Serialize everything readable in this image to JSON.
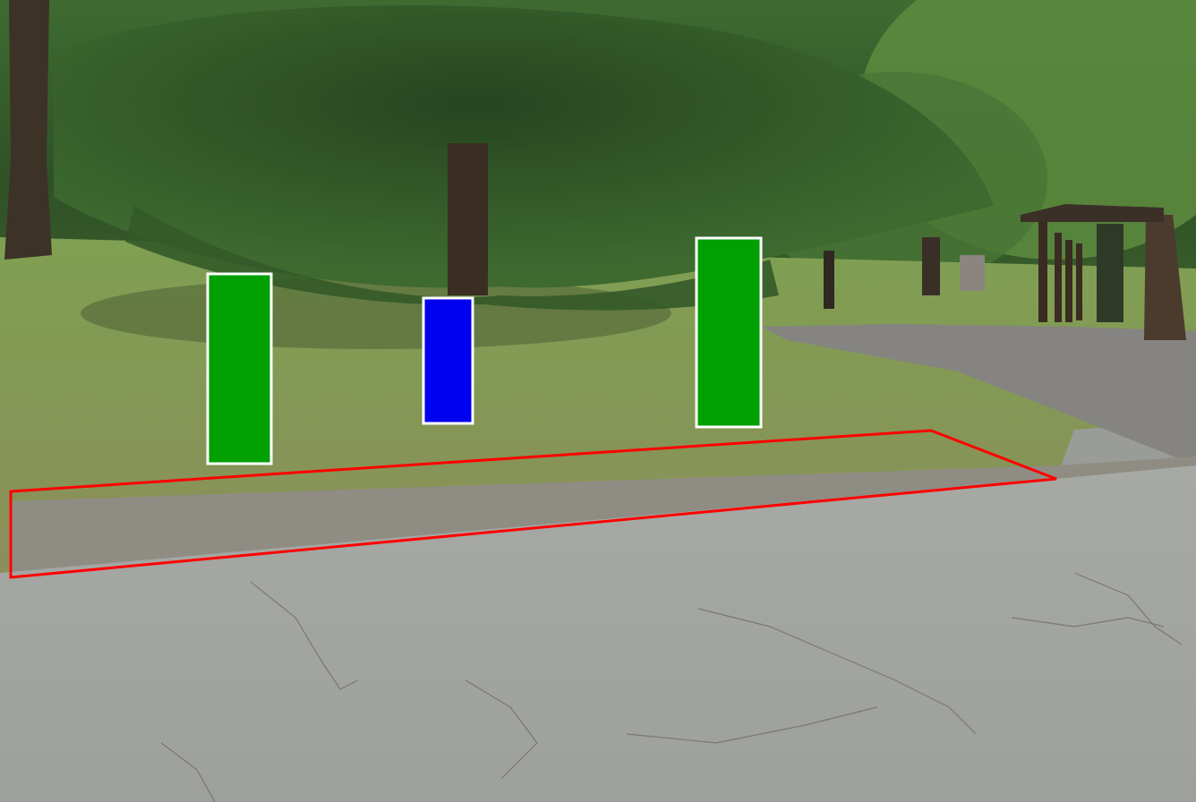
{
  "colors": {
    "marker_green": "#00a000",
    "marker_blue": "#0000f0",
    "marker_outline": "#ffffff",
    "zone_outline": "#ff0000",
    "foliage_dark": "#2a4a22",
    "foliage_mid": "#4f7a3a",
    "lawn": "#7e9a4f",
    "lawn_dry": "#8e8a5a",
    "gravel": "#8d8b80",
    "asphalt": "#a3a5a1",
    "path": "#807f7c"
  },
  "icons": {
    "marker": "rectangle-marker",
    "zone": "quadrilateral-zone"
  },
  "annotations": {
    "markers": [
      {
        "color": "green"
      },
      {
        "color": "blue"
      },
      {
        "color": "green"
      }
    ],
    "zone": {
      "color": "red"
    }
  }
}
